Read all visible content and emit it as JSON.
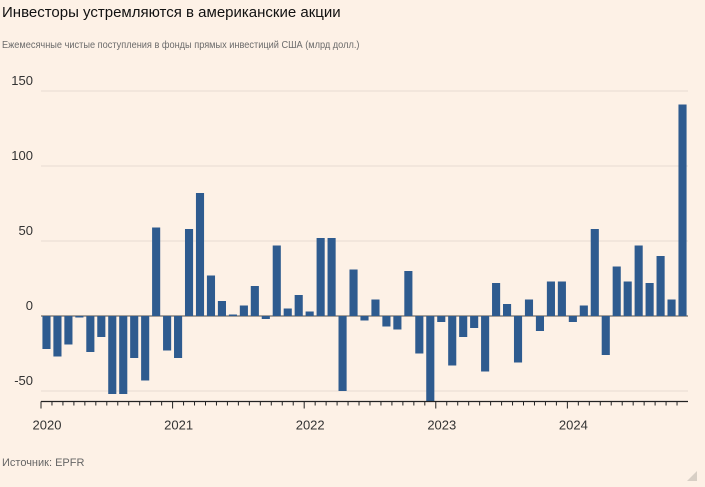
{
  "title": "Инвесторы устремляются в американские акции",
  "subtitle": "Ежемесячные чистые поступления в фонды прямых инвестиций США (млрд долл.)",
  "source": "Источник: EPFR",
  "colors": {
    "bar": "#2e5b8f",
    "background": "#fdf1e6",
    "grid": "#e6dcd2",
    "axis": "#222222"
  },
  "chart_data": {
    "type": "bar",
    "title": "Инвесторы устремляются в американские акции",
    "ylabel": "Ежемесячные чистые поступления в фонды прямых инвестиций США (млрд долл.)",
    "xlabel": "",
    "ylim": [
      -57,
      150
    ],
    "yticks": [
      150,
      100,
      50,
      0,
      -50
    ],
    "ytick_labels": [
      "150",
      "100",
      "50",
      "0",
      "-50"
    ],
    "year_ticks": [
      "2020",
      "2021",
      "2022",
      "2023",
      "2024"
    ],
    "start": "2020-01",
    "values": [
      -22,
      -27,
      -19,
      -1,
      -24,
      -14,
      -52,
      -52,
      -28,
      -43,
      59,
      -23,
      -28,
      58,
      82,
      27,
      10,
      1,
      7,
      20,
      -2,
      47,
      5,
      14,
      3,
      52,
      52,
      -50,
      31,
      -3,
      11,
      -7,
      -9,
      30,
      -25,
      -57,
      -4,
      -33,
      -14,
      -8,
      -37,
      22,
      8,
      -31,
      11,
      -10,
      23,
      23,
      -4,
      7,
      58,
      -26,
      33,
      23,
      47,
      22,
      40,
      11,
      141
    ]
  }
}
